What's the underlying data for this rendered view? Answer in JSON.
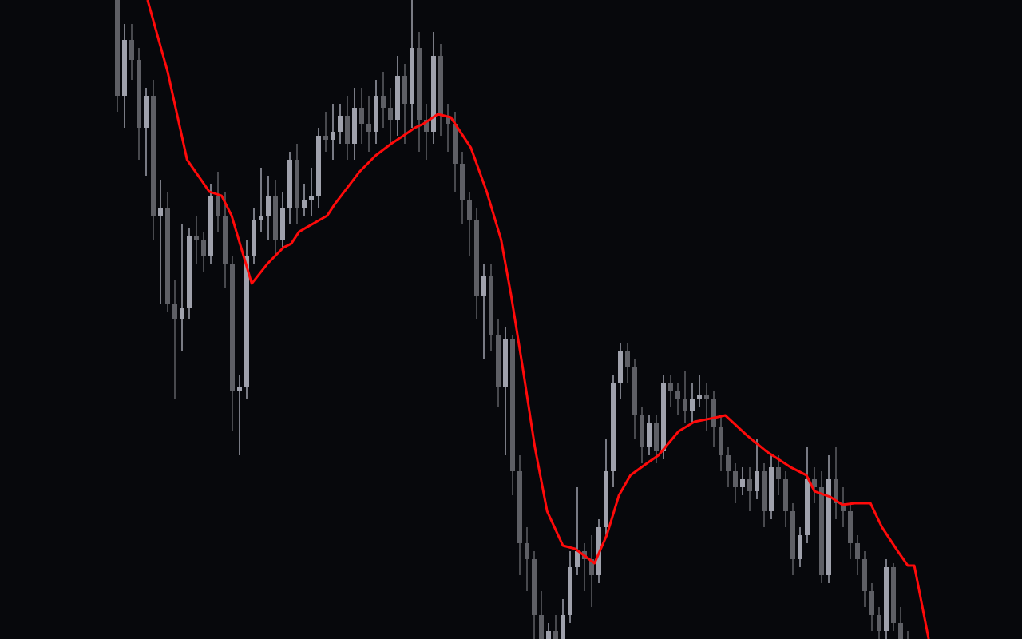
{
  "chart_data": {
    "type": "candlestick",
    "title": "",
    "xlabel": "",
    "ylabel": "",
    "ylim": [
      0,
      800
    ],
    "grid": false,
    "colors": {
      "background": "#07080c",
      "up": "#9fa1ac",
      "down": "#5e5f65",
      "ma_line": "#ff0a0a"
    },
    "candles_ohlc": [
      [
        800,
        820,
        660,
        680
      ],
      [
        680,
        770,
        640,
        750
      ],
      [
        750,
        770,
        700,
        725
      ],
      [
        725,
        740,
        600,
        640
      ],
      [
        640,
        690,
        580,
        680
      ],
      [
        680,
        700,
        500,
        530
      ],
      [
        530,
        575,
        420,
        540
      ],
      [
        540,
        560,
        410,
        420
      ],
      [
        420,
        450,
        300,
        400
      ],
      [
        400,
        520,
        360,
        415
      ],
      [
        415,
        515,
        400,
        505
      ],
      [
        505,
        530,
        470,
        500
      ],
      [
        500,
        510,
        460,
        480
      ],
      [
        480,
        570,
        470,
        555
      ],
      [
        555,
        585,
        510,
        530
      ],
      [
        530,
        560,
        440,
        470
      ],
      [
        470,
        480,
        260,
        310
      ],
      [
        310,
        330,
        230,
        315
      ],
      [
        315,
        500,
        300,
        480
      ],
      [
        480,
        540,
        470,
        525
      ],
      [
        525,
        590,
        510,
        530
      ],
      [
        530,
        580,
        500,
        555
      ],
      [
        555,
        575,
        480,
        500
      ],
      [
        500,
        560,
        490,
        540
      ],
      [
        540,
        610,
        520,
        600
      ],
      [
        600,
        620,
        520,
        540
      ],
      [
        540,
        570,
        530,
        550
      ],
      [
        550,
        590,
        530,
        555
      ],
      [
        555,
        640,
        540,
        630
      ],
      [
        630,
        660,
        610,
        625
      ],
      [
        625,
        670,
        600,
        635
      ],
      [
        635,
        670,
        620,
        655
      ],
      [
        655,
        680,
        600,
        620
      ],
      [
        620,
        690,
        600,
        665
      ],
      [
        665,
        690,
        620,
        645
      ],
      [
        645,
        680,
        610,
        635
      ],
      [
        635,
        700,
        620,
        680
      ],
      [
        680,
        710,
        640,
        665
      ],
      [
        665,
        690,
        620,
        650
      ],
      [
        650,
        730,
        630,
        705
      ],
      [
        705,
        720,
        620,
        670
      ],
      [
        670,
        800,
        640,
        740
      ],
      [
        740,
        760,
        610,
        650
      ],
      [
        650,
        670,
        600,
        635
      ],
      [
        635,
        760,
        620,
        730
      ],
      [
        730,
        745,
        630,
        655
      ],
      [
        655,
        670,
        610,
        645
      ],
      [
        645,
        660,
        560,
        595
      ],
      [
        595,
        610,
        520,
        550
      ],
      [
        550,
        560,
        480,
        525
      ],
      [
        525,
        540,
        400,
        430
      ],
      [
        430,
        470,
        350,
        455
      ],
      [
        455,
        470,
        360,
        380
      ],
      [
        380,
        400,
        290,
        315
      ],
      [
        315,
        390,
        230,
        375
      ],
      [
        375,
        380,
        180,
        210
      ],
      [
        210,
        230,
        80,
        120
      ],
      [
        120,
        140,
        60,
        100
      ],
      [
        100,
        110,
        0,
        30
      ],
      [
        30,
        60,
        -20,
        0
      ],
      [
        0,
        20,
        -30,
        10
      ],
      [
        10,
        30,
        -40,
        -10
      ],
      [
        -10,
        50,
        -20,
        30
      ],
      [
        30,
        110,
        20,
        90
      ],
      [
        90,
        190,
        80,
        110
      ],
      [
        110,
        120,
        60,
        100
      ],
      [
        100,
        130,
        40,
        80
      ],
      [
        80,
        150,
        70,
        140
      ],
      [
        140,
        250,
        130,
        210
      ],
      [
        210,
        330,
        190,
        320
      ],
      [
        320,
        370,
        300,
        360
      ],
      [
        360,
        370,
        320,
        340
      ],
      [
        340,
        350,
        250,
        280
      ],
      [
        280,
        290,
        220,
        240
      ],
      [
        240,
        280,
        230,
        270
      ],
      [
        270,
        280,
        220,
        235
      ],
      [
        235,
        330,
        225,
        320
      ],
      [
        320,
        330,
        290,
        310
      ],
      [
        310,
        320,
        280,
        300
      ],
      [
        300,
        335,
        270,
        285
      ],
      [
        285,
        320,
        270,
        300
      ],
      [
        300,
        330,
        290,
        305
      ],
      [
        305,
        320,
        260,
        300
      ],
      [
        300,
        310,
        240,
        265
      ],
      [
        265,
        280,
        210,
        230
      ],
      [
        230,
        240,
        190,
        210
      ],
      [
        210,
        220,
        170,
        190
      ],
      [
        190,
        215,
        180,
        200
      ],
      [
        200,
        215,
        160,
        185
      ],
      [
        185,
        250,
        175,
        210
      ],
      [
        210,
        220,
        140,
        160
      ],
      [
        160,
        230,
        150,
        215
      ],
      [
        215,
        230,
        180,
        200
      ],
      [
        200,
        210,
        140,
        160
      ],
      [
        160,
        170,
        80,
        100
      ],
      [
        100,
        140,
        90,
        130
      ],
      [
        130,
        240,
        120,
        200
      ],
      [
        200,
        215,
        170,
        190
      ],
      [
        190,
        210,
        70,
        80
      ],
      [
        80,
        230,
        70,
        200
      ],
      [
        200,
        240,
        150,
        170
      ],
      [
        170,
        190,
        140,
        160
      ],
      [
        160,
        170,
        100,
        120
      ],
      [
        120,
        130,
        80,
        100
      ],
      [
        100,
        110,
        40,
        60
      ],
      [
        60,
        70,
        10,
        30
      ],
      [
        30,
        40,
        -10,
        10
      ],
      [
        10,
        100,
        0,
        90
      ],
      [
        90,
        95,
        10,
        20
      ],
      [
        20,
        40,
        -20,
        0
      ],
      [
        0,
        10,
        -40,
        -20
      ]
    ],
    "moving_average": [
      [
        4.2,
        800
      ],
      [
        7,
        710
      ],
      [
        9.7,
        600
      ],
      [
        12.8,
        560
      ],
      [
        14.5,
        555
      ],
      [
        15.9,
        530
      ],
      [
        18.7,
        445
      ],
      [
        20.9,
        470
      ],
      [
        23.1,
        490
      ],
      [
        24.2,
        495
      ],
      [
        25.3,
        510
      ],
      [
        29.2,
        530
      ],
      [
        30.3,
        545
      ],
      [
        33.7,
        585
      ],
      [
        35.9,
        605
      ],
      [
        38.1,
        620
      ],
      [
        39.8,
        630
      ],
      [
        41.4,
        640
      ],
      [
        42.6,
        645
      ],
      [
        44.6,
        657
      ],
      [
        46.4,
        653
      ],
      [
        49.2,
        615
      ],
      [
        51.4,
        560
      ],
      [
        53.4,
        500
      ],
      [
        54.8,
        430
      ],
      [
        56.4,
        340
      ],
      [
        58.1,
        240
      ],
      [
        59.8,
        160
      ],
      [
        62,
        117
      ],
      [
        63.7,
        113
      ],
      [
        66.4,
        95
      ],
      [
        68.1,
        130
      ],
      [
        69.8,
        180
      ],
      [
        71.4,
        205
      ],
      [
        73.7,
        220
      ],
      [
        75.3,
        230
      ],
      [
        78.1,
        260
      ],
      [
        80.3,
        272
      ],
      [
        83.1,
        277
      ],
      [
        84.6,
        280
      ],
      [
        87.6,
        255
      ],
      [
        90.3,
        235
      ],
      [
        93.7,
        215
      ],
      [
        95.9,
        205
      ],
      [
        97,
        185
      ],
      [
        99.2,
        178
      ],
      [
        100.9,
        168
      ],
      [
        102.6,
        170
      ],
      [
        104.8,
        170
      ],
      [
        106.4,
        140
      ],
      [
        108.6,
        110
      ],
      [
        110,
        92
      ],
      [
        110.9,
        92
      ],
      [
        112.9,
        0
      ]
    ]
  }
}
